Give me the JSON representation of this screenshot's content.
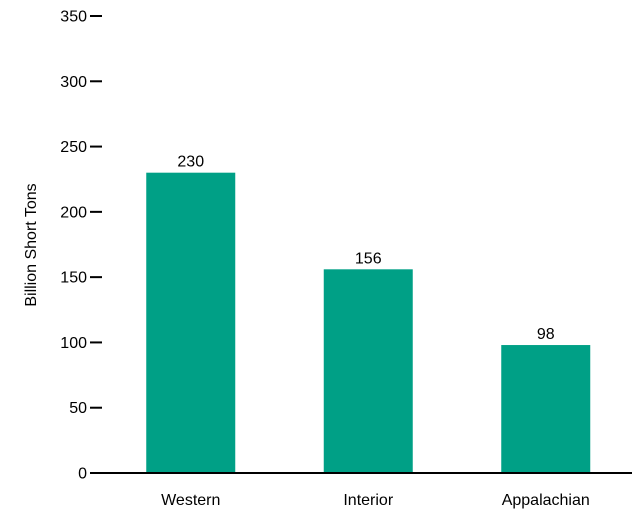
{
  "chart_data": {
    "type": "bar",
    "title": "",
    "xlabel": "",
    "ylabel": "Billion Short Tons",
    "categories": [
      "Western",
      "Interior",
      "Appalachian"
    ],
    "values": [
      230,
      156,
      98
    ],
    "data_labels": [
      "230",
      "156",
      "98"
    ],
    "ylim": [
      0,
      350
    ],
    "yticks": [
      0,
      50,
      100,
      150,
      200,
      250,
      300,
      350
    ],
    "grid": false,
    "legend": "none",
    "bar_color": "#00a086"
  }
}
